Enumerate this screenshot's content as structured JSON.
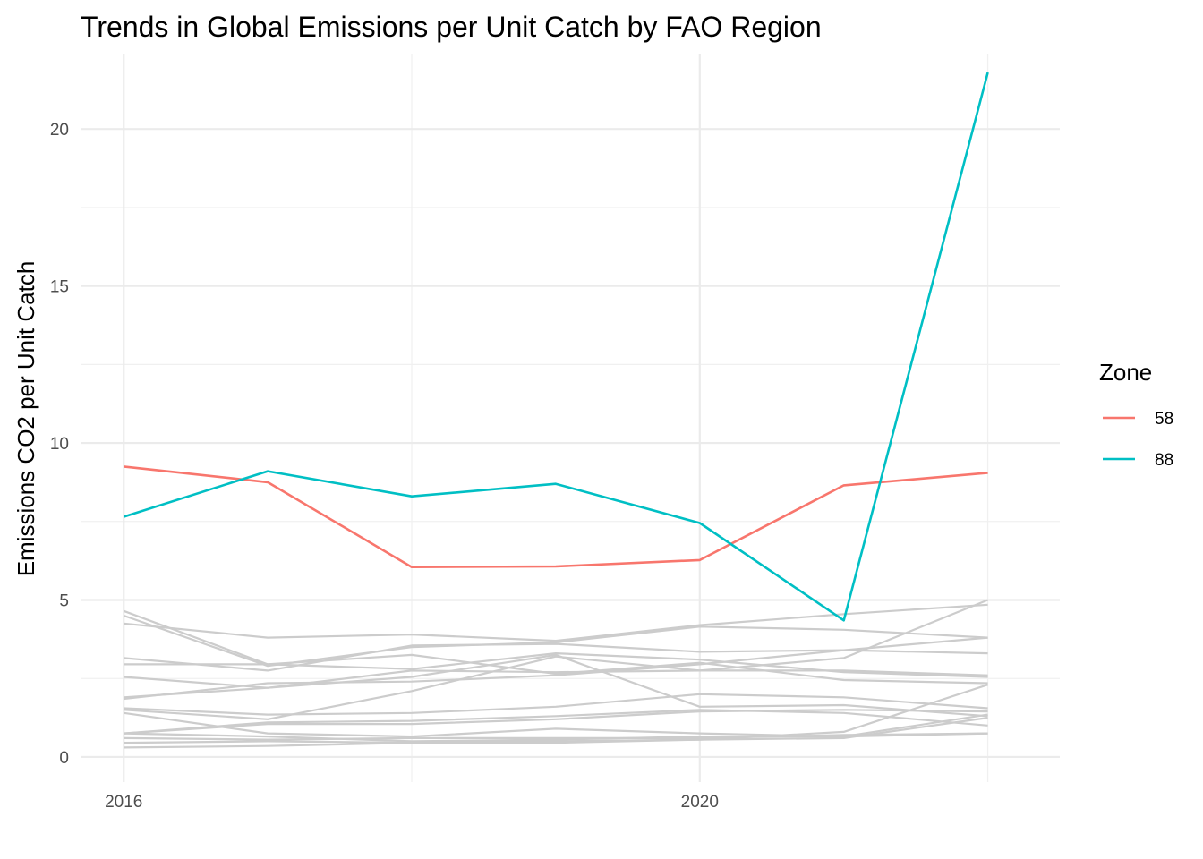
{
  "chart_data": {
    "type": "line",
    "title": "Trends in Global Emissions per Unit Catch by FAO Region",
    "xlabel": "",
    "ylabel": "Emissions CO2 per Unit Catch",
    "x": [
      2016,
      2017,
      2018,
      2019,
      2020,
      2021,
      2022
    ],
    "xlim": [
      2015.7,
      2022.5
    ],
    "ylim": [
      -0.8,
      22.4
    ],
    "x_ticks": [
      2016,
      2020
    ],
    "x_tick_labels": [
      "2016",
      "2020"
    ],
    "y_ticks": [
      0,
      5,
      10,
      15,
      20
    ],
    "y_tick_labels": [
      "0",
      "5",
      "10",
      "15",
      "20"
    ],
    "grid": true,
    "legend": {
      "title": "Zone",
      "position": "right",
      "entries": [
        {
          "label": "58",
          "color": "#F8766D"
        },
        {
          "label": "88",
          "color": "#00BFC4"
        }
      ]
    },
    "series": [
      {
        "name": "58",
        "color": "#F8766D",
        "highlight": true,
        "values": [
          9.25,
          8.75,
          6.05,
          6.07,
          6.27,
          8.65,
          9.05
        ]
      },
      {
        "name": "88",
        "color": "#00BFC4",
        "highlight": true,
        "values": [
          7.65,
          9.1,
          8.3,
          8.7,
          7.45,
          4.35,
          21.8
        ]
      },
      {
        "color": "#cccccc",
        "highlight": false,
        "values": [
          4.25,
          3.8,
          3.9,
          3.7,
          4.2,
          4.55,
          4.85
        ]
      },
      {
        "color": "#cccccc",
        "highlight": false,
        "values": [
          4.5,
          2.9,
          3.5,
          3.65,
          4.15,
          4.05,
          3.8
        ]
      },
      {
        "color": "#cccccc",
        "highlight": false,
        "values": [
          4.65,
          2.95,
          3.25,
          2.65,
          3.0,
          2.45,
          2.35
        ]
      },
      {
        "color": "#cccccc",
        "highlight": false,
        "values": [
          3.15,
          2.75,
          3.55,
          3.6,
          3.35,
          3.4,
          3.3
        ]
      },
      {
        "color": "#cccccc",
        "highlight": false,
        "values": [
          2.95,
          2.95,
          2.8,
          3.3,
          3.1,
          2.7,
          2.55
        ]
      },
      {
        "color": "#cccccc",
        "highlight": false,
        "values": [
          2.55,
          2.2,
          2.75,
          2.7,
          2.75,
          2.75,
          2.6
        ]
      },
      {
        "color": "#cccccc",
        "highlight": false,
        "values": [
          1.9,
          2.2,
          2.55,
          3.25,
          1.6,
          1.65,
          1.3
        ]
      },
      {
        "color": "#cccccc",
        "highlight": false,
        "values": [
          1.85,
          2.35,
          2.4,
          2.6,
          2.95,
          3.4,
          3.8
        ]
      },
      {
        "color": "#cccccc",
        "highlight": false,
        "values": [
          1.5,
          1.2,
          2.1,
          3.2,
          2.75,
          3.15,
          5.0
        ]
      },
      {
        "color": "#cccccc",
        "highlight": false,
        "values": [
          1.55,
          1.35,
          1.4,
          1.6,
          2.0,
          1.9,
          1.55
        ]
      },
      {
        "color": "#cccccc",
        "highlight": false,
        "values": [
          1.4,
          0.75,
          0.65,
          0.9,
          0.75,
          0.65,
          1.35
        ]
      },
      {
        "color": "#cccccc",
        "highlight": false,
        "values": [
          0.75,
          1.05,
          1.05,
          1.2,
          1.45,
          1.5,
          1.45
        ]
      },
      {
        "color": "#cccccc",
        "highlight": false,
        "values": [
          0.75,
          1.1,
          1.15,
          1.3,
          1.5,
          1.4,
          1.0
        ]
      },
      {
        "color": "#cccccc",
        "highlight": false,
        "values": [
          0.6,
          0.55,
          0.6,
          0.6,
          0.6,
          0.7,
          0.75
        ]
      },
      {
        "color": "#cccccc",
        "highlight": false,
        "values": [
          0.75,
          0.65,
          0.5,
          0.55,
          0.65,
          0.65,
          0.75
        ]
      },
      {
        "color": "#cccccc",
        "highlight": false,
        "values": [
          0.3,
          0.35,
          0.45,
          0.45,
          0.55,
          0.6,
          1.25
        ]
      },
      {
        "color": "#cccccc",
        "highlight": false,
        "values": [
          0.45,
          0.5,
          0.45,
          0.5,
          0.55,
          0.8,
          2.3
        ]
      }
    ]
  }
}
